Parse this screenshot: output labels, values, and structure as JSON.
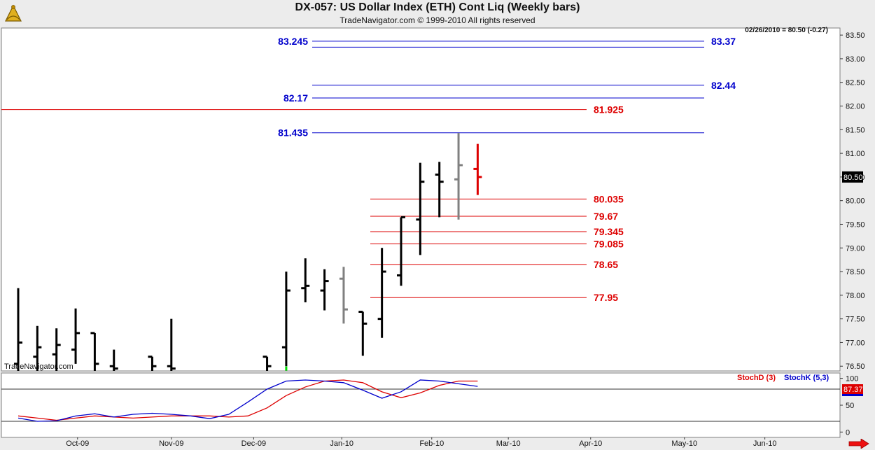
{
  "header": {
    "title": "DX-057:  US Dollar Index (ETH) Cont Liq  (Weekly bars)",
    "subtitle": "TradeNavigator.com © 1999-2010 All rights reserved",
    "logo_icon": "sextant-logo-icon"
  },
  "quote_line": "02/26/2010 = 80.50 (-0.27)",
  "current_price_tag": "80.50",
  "watermark": "TradeNavigator.com",
  "indicator_legend": {
    "stochd": "StochD (3)",
    "stochk": "StochK (5,3)"
  },
  "indicator_tag": "87.37",
  "colors": {
    "blue": "#0000cc",
    "red": "#dd0000",
    "bar": "#000000",
    "grey_bar": "#808080"
  },
  "chart_data": [
    {
      "type": "ohlc",
      "title": "DX-057:  US Dollar Index (ETH) Cont Liq  (Weekly bars)",
      "ylim": [
        76.4,
        83.65
      ],
      "yticks": [
        "76.50",
        "77.00",
        "77.50",
        "78.00",
        "78.50",
        "79.00",
        "79.50",
        "80.00",
        "80.50",
        "81.00",
        "81.50",
        "82.00",
        "82.50",
        "83.00",
        "83.50"
      ],
      "xlabels": [
        {
          "label": "Oct-09",
          "week": 3.1
        },
        {
          "label": "Nov-09",
          "week": 8.0
        },
        {
          "label": "Dec-09",
          "week": 12.3
        },
        {
          "label": "Jan-10",
          "week": 16.9
        },
        {
          "label": "Feb-10",
          "week": 21.6
        },
        {
          "label": "Mar-10",
          "week": 25.6
        },
        {
          "label": "Apr-10",
          "week": 29.9
        },
        {
          "label": "May-10",
          "week": 34.8
        },
        {
          "label": "Jun-10",
          "week": 39.0
        }
      ],
      "bars": [
        {
          "w": 0,
          "o": 76.55,
          "h": 78.15,
          "l": 76.4,
          "c": 77.0
        },
        {
          "w": 1,
          "o": 76.7,
          "h": 77.35,
          "l": 76.4,
          "c": 76.9
        },
        {
          "w": 2,
          "o": 76.75,
          "h": 77.3,
          "l": 76.4,
          "c": 76.95
        },
        {
          "w": 3,
          "o": 76.85,
          "h": 77.72,
          "l": 76.55,
          "c": 77.2
        },
        {
          "w": 4,
          "o": 77.2,
          "h": 77.2,
          "l": 76.4,
          "c": 76.55
        },
        {
          "w": 5,
          "o": 76.5,
          "h": 76.85,
          "l": 76.4,
          "c": 76.45
        },
        {
          "w": 7,
          "o": 76.7,
          "h": 76.7,
          "l": 76.4,
          "c": 76.5
        },
        {
          "w": 8,
          "o": 76.5,
          "h": 77.5,
          "l": 76.4,
          "c": 76.45
        },
        {
          "w": 13,
          "o": 76.7,
          "h": 76.7,
          "l": 76.4,
          "c": 76.5
        },
        {
          "w": 14,
          "o": 76.9,
          "h": 78.5,
          "l": 76.5,
          "c": 78.1
        },
        {
          "w": 15,
          "o": 78.15,
          "h": 78.78,
          "l": 77.85,
          "c": 78.2
        },
        {
          "w": 16,
          "o": 78.1,
          "h": 78.55,
          "l": 77.68,
          "c": 78.3
        },
        {
          "w": 17,
          "o": 78.35,
          "h": 78.6,
          "l": 77.4,
          "c": 77.7,
          "grey": true
        },
        {
          "w": 18,
          "o": 77.65,
          "h": 77.65,
          "l": 76.72,
          "c": 77.4
        },
        {
          "w": 19,
          "o": 77.5,
          "h": 79.0,
          "l": 77.1,
          "c": 78.5
        },
        {
          "w": 20,
          "o": 78.42,
          "h": 79.65,
          "l": 78.2,
          "c": 79.65
        },
        {
          "w": 21,
          "o": 79.6,
          "h": 80.8,
          "l": 78.85,
          "c": 80.4
        },
        {
          "w": 22,
          "o": 80.55,
          "h": 80.82,
          "l": 79.65,
          "c": 80.4
        },
        {
          "w": 23,
          "o": 80.45,
          "h": 81.43,
          "l": 79.6,
          "c": 80.75,
          "grey": true
        },
        {
          "w": 24,
          "o": 80.67,
          "h": 81.2,
          "l": 80.12,
          "c": 80.5,
          "red": true
        }
      ],
      "blue_levels": [
        {
          "value": 83.37,
          "label_left": "83.245",
          "label_right": "83.37"
        },
        {
          "value": 83.245
        },
        {
          "value": 82.44,
          "label_right": "82.44"
        },
        {
          "value": 82.17,
          "label_left": "82.17"
        },
        {
          "value": 81.435,
          "label_left": "81.435"
        }
      ],
      "red_levels": [
        {
          "value": 81.925,
          "label": "81.925",
          "full": true
        },
        {
          "value": 80.035,
          "label": "80.035"
        },
        {
          "value": 79.67,
          "label": "79.67"
        },
        {
          "value": 79.345,
          "label": "79.345"
        },
        {
          "value": 79.085,
          "label": "79.085"
        },
        {
          "value": 78.65,
          "label": "78.65"
        },
        {
          "value": 77.95,
          "label": "77.95"
        }
      ],
      "markers": [
        {
          "w": 14,
          "value": 76.45,
          "color": "#00dd00"
        }
      ]
    },
    {
      "type": "line",
      "name": "Stochastic",
      "ylim": [
        -10,
        110
      ],
      "yticks": [
        "0",
        "50",
        "100"
      ],
      "reference_lines": [
        20,
        80
      ],
      "series": [
        {
          "name": "StochD (3)",
          "color": "#dd0000",
          "x": [
            0,
            1,
            2,
            3,
            4,
            5,
            6,
            7,
            8,
            9,
            10,
            11,
            12,
            13,
            14,
            15,
            16,
            17,
            18,
            19,
            20,
            21,
            22,
            23,
            24
          ],
          "values": [
            30,
            26,
            22,
            26,
            30,
            28,
            26,
            28,
            30,
            30,
            30,
            28,
            30,
            45,
            68,
            84,
            95,
            97,
            92,
            75,
            64,
            73,
            87,
            95,
            95
          ]
        },
        {
          "name": "StochK (5,3)",
          "color": "#0000cc",
          "x": [
            0,
            1,
            2,
            3,
            4,
            5,
            6,
            7,
            8,
            9,
            10,
            11,
            12,
            13,
            14,
            15,
            16,
            17,
            18,
            19,
            20,
            21,
            22,
            23,
            24
          ],
          "values": [
            26,
            20,
            21,
            30,
            34,
            28,
            33,
            35,
            33,
            30,
            25,
            33,
            56,
            80,
            95,
            97,
            95,
            92,
            78,
            63,
            75,
            97,
            95,
            90,
            85
          ]
        }
      ]
    }
  ]
}
